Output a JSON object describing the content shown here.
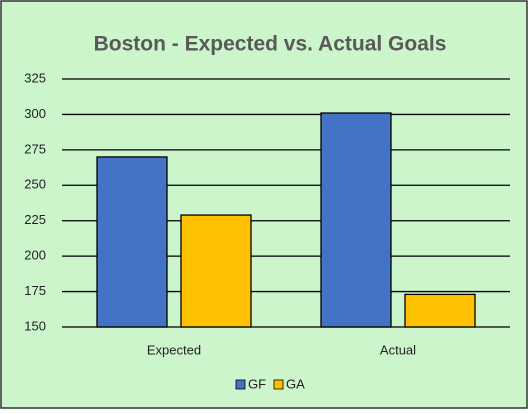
{
  "chart_data": {
    "type": "bar",
    "title": "Boston - Expected vs. Actual Goals",
    "categories": [
      "Expected",
      "Actual"
    ],
    "series": [
      {
        "name": "GF",
        "color": "#4472c4",
        "values": [
          270,
          301
        ]
      },
      {
        "name": "GA",
        "color": "#ffc000",
        "values": [
          229,
          173
        ]
      }
    ],
    "ylim": [
      150,
      325
    ],
    "yticks": [
      150,
      175,
      200,
      225,
      250,
      275,
      300,
      325
    ],
    "grid": true,
    "legend": "bottom"
  }
}
